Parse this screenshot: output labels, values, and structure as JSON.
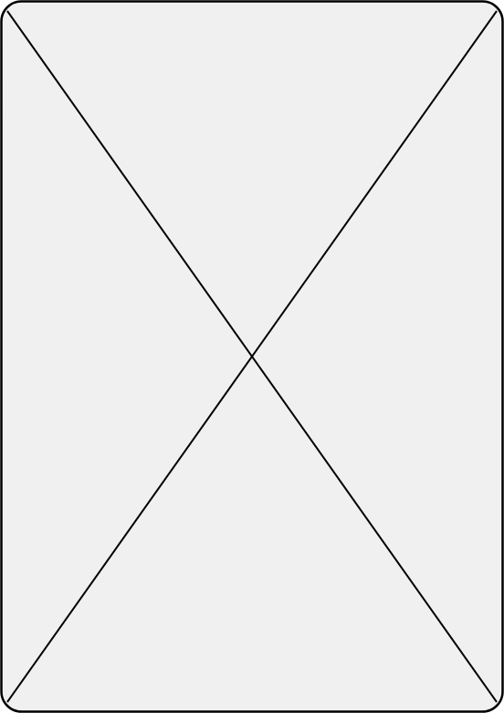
{
  "placeholder": {
    "kind": "image-placeholder",
    "fill_color": "#f0f0f0",
    "stroke_color": "#000000",
    "icon": "image-placeholder-cross"
  }
}
